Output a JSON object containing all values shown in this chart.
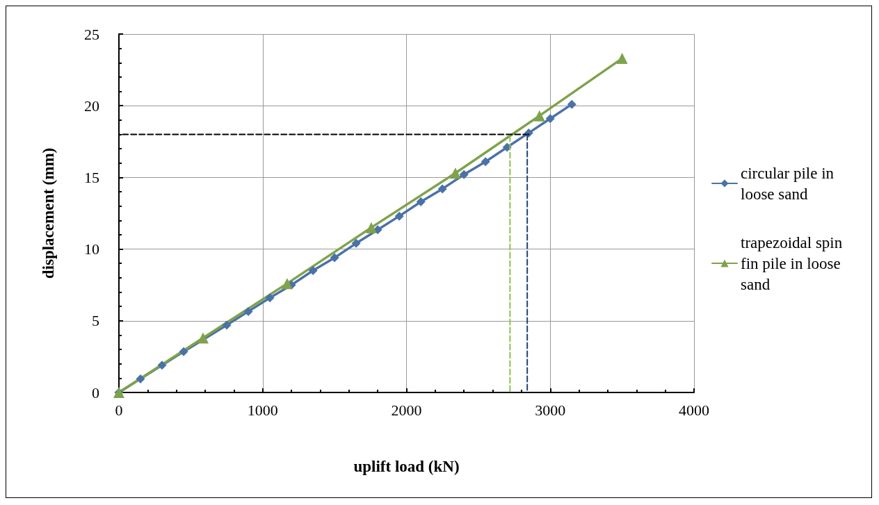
{
  "chart_data": {
    "type": "line",
    "xlabel": "uplift load (kN)",
    "ylabel": "displacement (mm)",
    "xlim": [
      0,
      4000
    ],
    "xticks": [
      0,
      1000,
      2000,
      3000,
      4000
    ],
    "ylim": [
      0,
      25
    ],
    "yticks": [
      0,
      5,
      10,
      15,
      20,
      25
    ],
    "grid": true,
    "legend": "right",
    "series": [
      {
        "name": "circular pile in loose sand",
        "color": "#4a72a8",
        "marker": "diamond",
        "x": [
          0,
          150,
          300,
          450,
          600,
          750,
          900,
          1050,
          1200,
          1350,
          1500,
          1650,
          1800,
          1950,
          2100,
          2250,
          2400,
          2550,
          2700,
          2850,
          3000,
          3150
        ],
        "values": [
          0,
          0.95,
          1.9,
          2.85,
          null,
          4.7,
          5.65,
          6.6,
          7.5,
          8.5,
          9.4,
          10.4,
          11.35,
          12.3,
          13.3,
          14.2,
          15.2,
          16.1,
          17.1,
          18.1,
          19.1,
          20.1
        ]
      },
      {
        "name": "trapezoidal spin fin pile in loose sand",
        "color": "#7fa24a",
        "marker": "triangle",
        "x": [
          0,
          585,
          1170,
          1755,
          2340,
          2925,
          3500
        ],
        "values": [
          0,
          3.8,
          7.6,
          11.5,
          15.3,
          19.3,
          23.3
        ]
      },
      {
        "color": "#000000",
        "marker": "none",
        "line_style": "dashed",
        "x": [
          2850,
          0
        ],
        "values": [
          18,
          18
        ]
      },
      {
        "color": "#8fbf4f",
        "marker": "none",
        "line_style": "dashed",
        "x": [
          2720,
          2720
        ],
        "values": [
          17.9,
          0
        ]
      },
      {
        "color": "#1f3f7a",
        "marker": "none",
        "line_style": "dashed",
        "x": [
          2840,
          2840
        ],
        "values": [
          18,
          0
        ]
      }
    ]
  }
}
